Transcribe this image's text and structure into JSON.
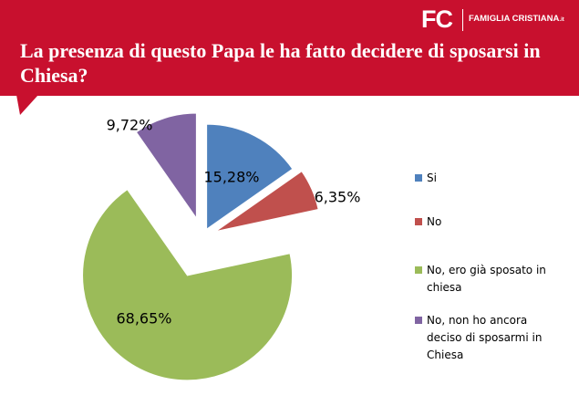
{
  "header": {
    "logo": "FC",
    "brand": "FAMIGLIA CRISTIANA",
    "brand_suffix": ".it"
  },
  "chart_data": {
    "type": "pie",
    "title": "La presenza di questo Papa le ha fatto decidere di sposarsi in Chiesa?",
    "categories": [
      "Si",
      "No",
      "No, ero già sposato in chiesa",
      "No, non ho ancora deciso di sposarmi in Chiesa"
    ],
    "values": [
      15.28,
      6.35,
      68.65,
      9.72
    ],
    "value_labels": [
      "15,28%",
      "6,35%",
      "68,65%",
      "9,72%"
    ],
    "colors": [
      "#4f81bd",
      "#c0504d",
      "#9bbb59",
      "#8064a2"
    ],
    "legend": "right"
  }
}
